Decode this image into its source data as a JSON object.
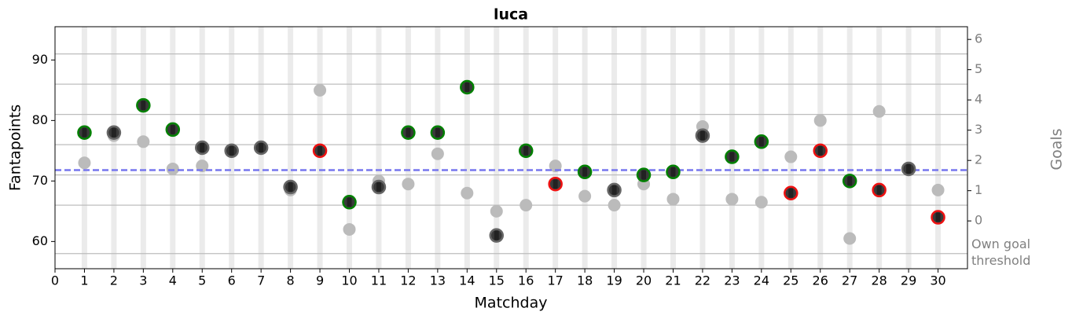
{
  "chart_data": {
    "type": "scatter",
    "title": "luca",
    "xlabel": "Matchday",
    "ylabel": "Fantapoints",
    "y2label": "Goals",
    "annotation": "Own goal threshold",
    "x": [
      1,
      2,
      3,
      4,
      5,
      6,
      7,
      8,
      9,
      10,
      11,
      12,
      13,
      14,
      15,
      16,
      17,
      18,
      19,
      20,
      21,
      22,
      23,
      24,
      25,
      26,
      27,
      28,
      29,
      30
    ],
    "series": [
      {
        "color": "#bbbbbb",
        "values": [
          73,
          77.5,
          76.5,
          72,
          72.5,
          75,
          75.5,
          68.5,
          85,
          62,
          70,
          69.5,
          74.5,
          68,
          65,
          66,
          72.5,
          67.5,
          66,
          69.5,
          67,
          79,
          67,
          66.5,
          74,
          80,
          60.5,
          81.5,
          72,
          68.5
        ]
      },
      {
        "color": "#222222",
        "edge_colors": [
          "#008000",
          "#666666",
          "#008000",
          "#008000",
          "#666666",
          "#666666",
          "#666666",
          "#666666",
          "#ee1111",
          "#008000",
          "#666666",
          "#008000",
          "#008000",
          "#008000",
          "#666666",
          "#008000",
          "#ee1111",
          "#008000",
          "#666666",
          "#008000",
          "#008000",
          "#666666",
          "#008000",
          "#008000",
          "#ee1111",
          "#ee1111",
          "#008000",
          "#ee1111",
          "#666666",
          "#ee1111"
        ],
        "values": [
          78,
          78,
          82.5,
          78.5,
          75.5,
          75,
          75.5,
          69,
          75,
          66.5,
          69,
          78,
          78,
          85.5,
          61,
          75,
          69.5,
          71.5,
          68.5,
          71,
          71.5,
          77.5,
          74,
          76.5,
          68,
          75,
          70,
          68.5,
          72,
          64
        ]
      }
    ],
    "mean_line": {
      "value": 71.8,
      "color": "#7777ee"
    },
    "threshold_lines": [
      58,
      66,
      71,
      76,
      81,
      86,
      91
    ],
    "xlim": [
      0,
      31
    ],
    "ylim": [
      55.5,
      95.5
    ],
    "y2lim": [
      -1.58,
      6.42
    ],
    "xticks": [
      0,
      1,
      2,
      3,
      4,
      5,
      6,
      7,
      8,
      9,
      10,
      11,
      12,
      13,
      14,
      15,
      16,
      17,
      18,
      19,
      20,
      21,
      22,
      23,
      24,
      25,
      26,
      27,
      28,
      29,
      30
    ],
    "yticks": [
      60,
      70,
      80,
      90
    ],
    "y2ticks": [
      0,
      1,
      2,
      3,
      4,
      5,
      6
    ]
  }
}
